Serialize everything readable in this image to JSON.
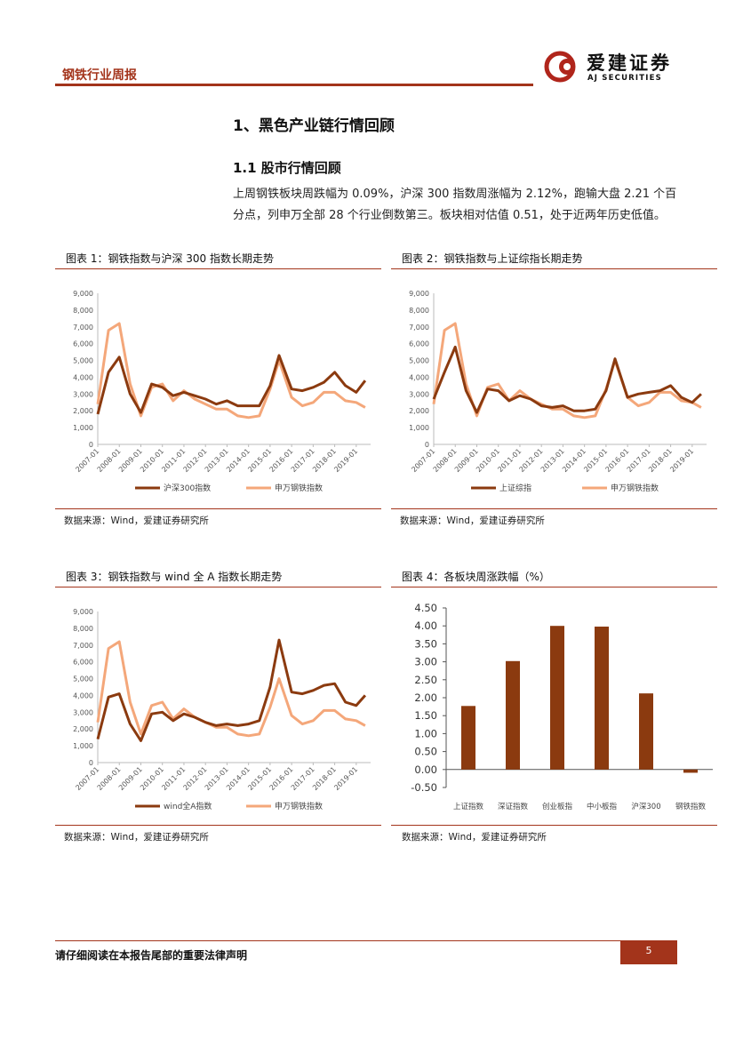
{
  "header": {
    "title": "钢铁行业周报",
    "logo_cn": "爱建证券",
    "logo_en": "AJ SECURITIES"
  },
  "section": {
    "title": "1、黑色产业链行情回顾",
    "subtitle": "1.1 股市行情回顾",
    "paragraph": "上周钢铁板块周跌幅为 0.09%，沪深 300 指数周涨幅为 2.12%，跑输大盘 2.21 个百分点，列申万全部 28 个行业倒数第三。板块相对估值 0.51，处于近两年历史低值。"
  },
  "figures": [
    {
      "title": "图表 1：钢铁指数与沪深 300 指数长期走势",
      "source": "数据来源：Wind，爱建证券研究所"
    },
    {
      "title": "图表 2：钢铁指数与上证综指长期走势",
      "source": "数据来源：Wind，爱建证券研究所"
    },
    {
      "title": "图表 3：钢铁指数与 wind 全 A 指数长期走势",
      "source": "数据来源：Wind，爱建证券研究所"
    },
    {
      "title": "图表 4：各板块周涨跌幅（%）",
      "source": "数据来源：Wind，爱建证券研究所"
    }
  ],
  "chart_data": [
    {
      "type": "line",
      "x": [
        "2007-01",
        "2007-07",
        "2008-01",
        "2008-07",
        "2009-01",
        "2009-07",
        "2010-01",
        "2010-07",
        "2011-01",
        "2011-07",
        "2012-01",
        "2012-07",
        "2013-01",
        "2013-07",
        "2014-01",
        "2014-07",
        "2015-01",
        "2015-06",
        "2016-01",
        "2016-07",
        "2017-01",
        "2017-07",
        "2018-01",
        "2018-07",
        "2019-01",
        "2019-06"
      ],
      "xticks": [
        "2007-01",
        "2008-01",
        "2009-01",
        "2010-01",
        "2011-01",
        "2012-01",
        "2013-01",
        "2014-01",
        "2015-01",
        "2016-01",
        "2017-01",
        "2018-01",
        "2019-01"
      ],
      "yticks": [
        "0",
        "1,000",
        "2,000",
        "3,000",
        "4,000",
        "5,000",
        "6,000",
        "7,000",
        "8,000",
        "9,000"
      ],
      "ylim": [
        0,
        9000
      ],
      "series": [
        {
          "name": "沪深300指数",
          "color": "#8b3a0f",
          "values": [
            1800,
            4300,
            5200,
            3000,
            1900,
            3600,
            3400,
            2900,
            3100,
            2900,
            2700,
            2400,
            2600,
            2300,
            2300,
            2300,
            3500,
            5300,
            3300,
            3200,
            3400,
            3700,
            4300,
            3500,
            3100,
            3800
          ]
        },
        {
          "name": "申万钢铁指数",
          "color": "#f4a77a",
          "values": [
            2400,
            6800,
            7200,
            3600,
            1700,
            3400,
            3600,
            2600,
            3200,
            2700,
            2400,
            2100,
            2100,
            1700,
            1600,
            1700,
            3300,
            5000,
            2800,
            2300,
            2500,
            3100,
            3100,
            2600,
            2500,
            2200
          ]
        }
      ]
    },
    {
      "type": "line",
      "x": [
        "2007-01",
        "2007-07",
        "2008-01",
        "2008-07",
        "2009-01",
        "2009-07",
        "2010-01",
        "2010-07",
        "2011-01",
        "2011-07",
        "2012-01",
        "2012-07",
        "2013-01",
        "2013-07",
        "2014-01",
        "2014-07",
        "2015-01",
        "2015-06",
        "2016-01",
        "2016-07",
        "2017-01",
        "2017-07",
        "2018-01",
        "2018-07",
        "2019-01",
        "2019-06"
      ],
      "xticks": [
        "2007-01",
        "2008-01",
        "2009-01",
        "2010-01",
        "2011-01",
        "2012-01",
        "2013-01",
        "2014-01",
        "2015-01",
        "2016-01",
        "2017-01",
        "2018-01",
        "2019-01"
      ],
      "yticks": [
        "0",
        "1,000",
        "2,000",
        "3,000",
        "4,000",
        "5,000",
        "6,000",
        "7,000",
        "8,000",
        "9,000"
      ],
      "ylim": [
        0,
        9000
      ],
      "series": [
        {
          "name": "上证综指",
          "color": "#8b3a0f",
          "values": [
            2700,
            4300,
            5800,
            3200,
            1900,
            3300,
            3200,
            2600,
            2900,
            2700,
            2300,
            2200,
            2300,
            2000,
            2000,
            2100,
            3200,
            5100,
            2800,
            3000,
            3100,
            3200,
            3500,
            2800,
            2500,
            3000
          ]
        },
        {
          "name": "申万钢铁指数",
          "color": "#f4a77a",
          "values": [
            2400,
            6800,
            7200,
            3600,
            1700,
            3400,
            3600,
            2600,
            3200,
            2700,
            2400,
            2100,
            2100,
            1700,
            1600,
            1700,
            3300,
            5000,
            2800,
            2300,
            2500,
            3100,
            3100,
            2600,
            2500,
            2200
          ]
        }
      ]
    },
    {
      "type": "line",
      "x": [
        "2007-01",
        "2007-07",
        "2008-01",
        "2008-07",
        "2009-01",
        "2009-07",
        "2010-01",
        "2010-07",
        "2011-01",
        "2011-07",
        "2012-01",
        "2012-07",
        "2013-01",
        "2013-07",
        "2014-01",
        "2014-07",
        "2015-01",
        "2015-06",
        "2016-01",
        "2016-07",
        "2017-01",
        "2017-07",
        "2018-01",
        "2018-07",
        "2019-01",
        "2019-06"
      ],
      "xticks": [
        "2007-01",
        "2008-01",
        "2009-01",
        "2010-01",
        "2011-01",
        "2012-01",
        "2013-01",
        "2014-01",
        "2015-01",
        "2016-01",
        "2017-01",
        "2018-01",
        "2019-01"
      ],
      "yticks": [
        "0",
        "1,000",
        "2,000",
        "3,000",
        "4,000",
        "5,000",
        "6,000",
        "7,000",
        "8,000",
        "9,000"
      ],
      "ylim": [
        0,
        9000
      ],
      "series": [
        {
          "name": "wind全A指数",
          "color": "#8b3a0f",
          "values": [
            1400,
            3900,
            4100,
            2300,
            1300,
            2900,
            3000,
            2500,
            2900,
            2700,
            2400,
            2200,
            2300,
            2200,
            2300,
            2500,
            4500,
            7300,
            4200,
            4100,
            4300,
            4600,
            4700,
            3600,
            3400,
            4000
          ]
        },
        {
          "name": "申万钢铁指数",
          "color": "#f4a77a",
          "values": [
            2400,
            6800,
            7200,
            3600,
            1700,
            3400,
            3600,
            2600,
            3200,
            2700,
            2400,
            2100,
            2100,
            1700,
            1600,
            1700,
            3300,
            5000,
            2800,
            2300,
            2500,
            3100,
            3100,
            2600,
            2500,
            2200
          ]
        }
      ]
    },
    {
      "type": "bar",
      "categories": [
        "上证指数",
        "深证指数",
        "创业板指",
        "中小板指",
        "沪深300",
        "钢铁指数"
      ],
      "values": [
        1.77,
        3.02,
        4.0,
        3.98,
        2.12,
        -0.09
      ],
      "color": "#8b3a0f",
      "yticks": [
        "4.50",
        "4.00",
        "3.50",
        "3.00",
        "2.50",
        "2.00",
        "1.50",
        "1.00",
        "0.50",
        "0.00",
        "-0.50"
      ],
      "ylim": [
        -0.5,
        4.5
      ]
    }
  ],
  "footer": {
    "disclaimer": "请仔细阅读在本报告尾部的重要法律声明",
    "page": "5"
  }
}
